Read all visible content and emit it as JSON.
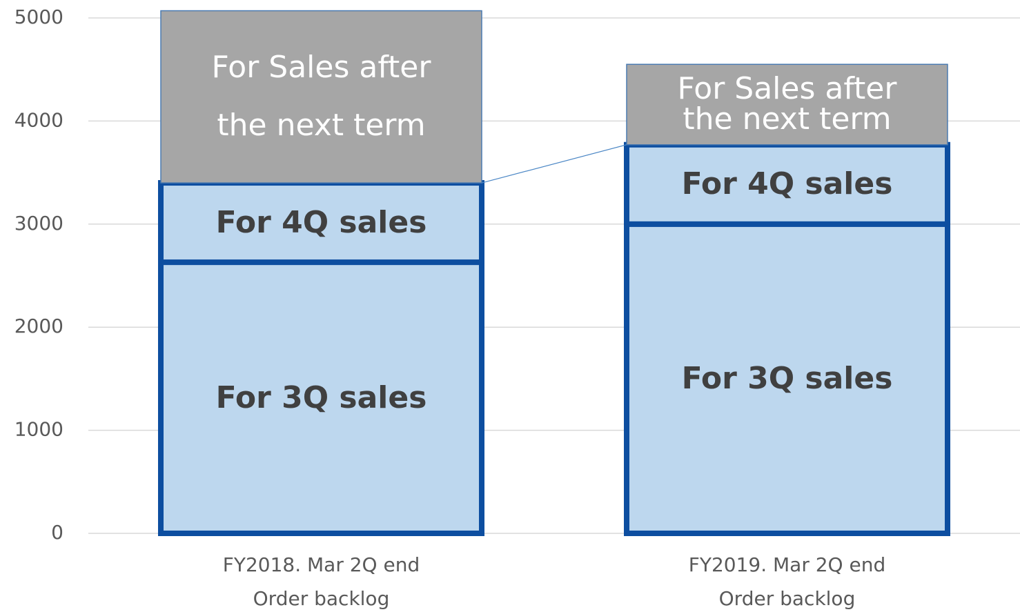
{
  "chart_data": {
    "type": "stacked_bar",
    "categories": [
      [
        "FY2018. Mar 2Q end",
        "Order backlog"
      ],
      [
        "FY2019. Mar 2Q end",
        "Order backlog"
      ]
    ],
    "series": [
      {
        "name": "For 3Q sales",
        "color": "#bdd7ee",
        "values": [
          2630,
          3000
        ]
      },
      {
        "name": "For 4Q sales",
        "color": "#bdd7ee",
        "values": [
          770,
          770
        ]
      },
      {
        "name": "For Sales after the next term",
        "color": "#a6a6a6",
        "values": [
          1670,
          780
        ]
      }
    ],
    "ylim": [
      0,
      5000
    ],
    "yticks": [
      0,
      1000,
      2000,
      3000,
      4000,
      5000
    ],
    "grid": true
  }
}
